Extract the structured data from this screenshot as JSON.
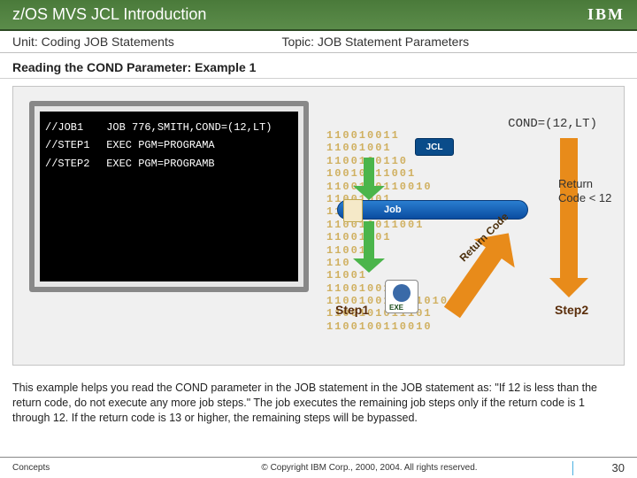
{
  "header": {
    "title": "z/OS MVS JCL Introduction",
    "logo_text": "IBM",
    "unit_label": "Unit: Coding JOB Statements",
    "topic_label": "Topic: JOB Statement Parameters"
  },
  "heading": "Reading the COND Parameter: Example 1",
  "terminal": {
    "lines": [
      {
        "name": "//JOB1",
        "rest": "JOB 776,SMITH,COND=(12,LT)"
      },
      {
        "name": "//STEP1",
        "rest": "EXEC PGM=PROGRAMA"
      },
      {
        "name": "//STEP2",
        "rest": "EXEC PGM=PROGRAMB"
      }
    ]
  },
  "diagram": {
    "binary_rows": [
      "110010011",
      "11001001",
      "1100100110",
      "10010011001",
      "1100100110010",
      "11001001",
      "11001001100",
      "110010011001",
      "11001001",
      "110010",
      "110",
      "11001",
      "11001001100",
      "110010011011010",
      "1100101011101",
      "1100100110010"
    ],
    "cond_text": "COND=(12,LT)",
    "jcl_badge": "JCL",
    "job_bar_label": "Job",
    "return_code_arrow_label": "Return Code",
    "rc_text_line1": "Return",
    "rc_text_line2": "Code < 12",
    "step1_label": "Step1",
    "step2_label": "Step2",
    "exe_tag": "EXE",
    "colors": {
      "green_arrow": "#4bb54b",
      "orange_arrow": "#e88b1a",
      "job_bar_start": "#2a7ed0",
      "job_bar_end": "#0a4ca0",
      "binary_text": "#d0b060"
    }
  },
  "explanation": "This example helps you read the COND parameter in the JOB statement in the JOB statement as: \"If 12 is less than the return code, do not execute any more job steps.\" The job executes the remaining job steps only if the return code is 1 through 12. If the return code is 13 or higher, the remaining steps will be bypassed.",
  "footer": {
    "left": "Concepts",
    "center": "© Copyright IBM Corp., 2000, 2004. All rights reserved.",
    "page": "30"
  }
}
